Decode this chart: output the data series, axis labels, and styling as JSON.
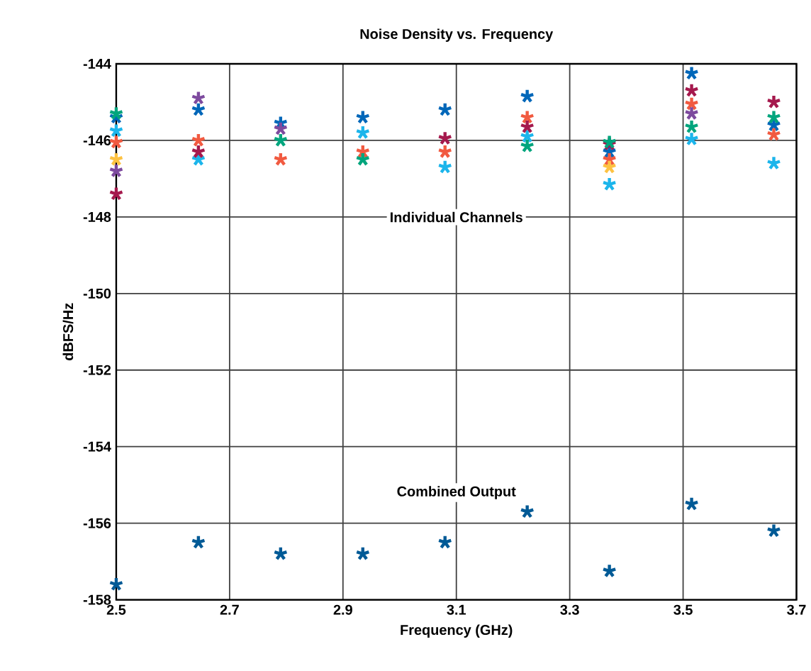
{
  "chart_data": {
    "type": "scatter",
    "title": "Noise Density vs. Frequency",
    "xlabel": "Frequency (GHz)",
    "ylabel": "dBFS/Hz",
    "x": [
      2.5,
      2.645,
      2.79,
      2.935,
      3.08,
      3.225,
      3.37,
      3.515,
      3.66
    ],
    "series": [
      {
        "color": "#0067b9",
        "values": [
          -145.4,
          -145.2,
          -145.55,
          -145.4,
          -145.2,
          -144.85,
          -146.3,
          -144.25,
          -145.6
        ]
      },
      {
        "color": "#1cb5eb",
        "values": [
          -145.75,
          -146.5,
          null,
          -145.8,
          -146.7,
          -145.9,
          -147.15,
          -145.97,
          -146.6
        ]
      },
      {
        "color": "#f15a40",
        "values": [
          -146.05,
          -146.0,
          -146.5,
          -146.3,
          -146.3,
          -145.4,
          -146.5,
          -145.05,
          -145.85
        ]
      },
      {
        "color": "#a5194d",
        "values": [
          -147.4,
          -146.3,
          null,
          null,
          -145.95,
          -145.65,
          -146.1,
          -144.7,
          -145.0
        ]
      },
      {
        "color": "#00a57d",
        "values": [
          -145.3,
          null,
          -146.0,
          -146.5,
          null,
          -146.15,
          -146.05,
          -145.65,
          -145.4
        ]
      },
      {
        "color": "#7d4a9e",
        "values": [
          -146.8,
          -144.9,
          -145.7,
          null,
          null,
          null,
          null,
          -145.3,
          null
        ]
      },
      {
        "color": "#fdc242",
        "values": [
          -146.5,
          null,
          null,
          null,
          null,
          null,
          -146.7,
          null,
          null
        ]
      },
      {
        "color": "#005a96",
        "values": [
          -157.6,
          -156.5,
          -156.8,
          -156.8,
          -156.5,
          -155.7,
          -157.25,
          -155.5,
          -156.2
        ]
      }
    ],
    "annotations": [
      "Individual Channels",
      "Combined Output"
    ],
    "xlim": [
      2.5,
      3.7
    ],
    "ylim": [
      -158,
      -144
    ],
    "xticks": [
      2.5,
      2.7,
      2.9,
      3.1,
      3.3,
      3.5,
      3.7
    ],
    "yticks": [
      -144,
      -146,
      -148,
      -150,
      -152,
      -154,
      -156,
      -158
    ],
    "grid": true,
    "marker": "cross"
  }
}
